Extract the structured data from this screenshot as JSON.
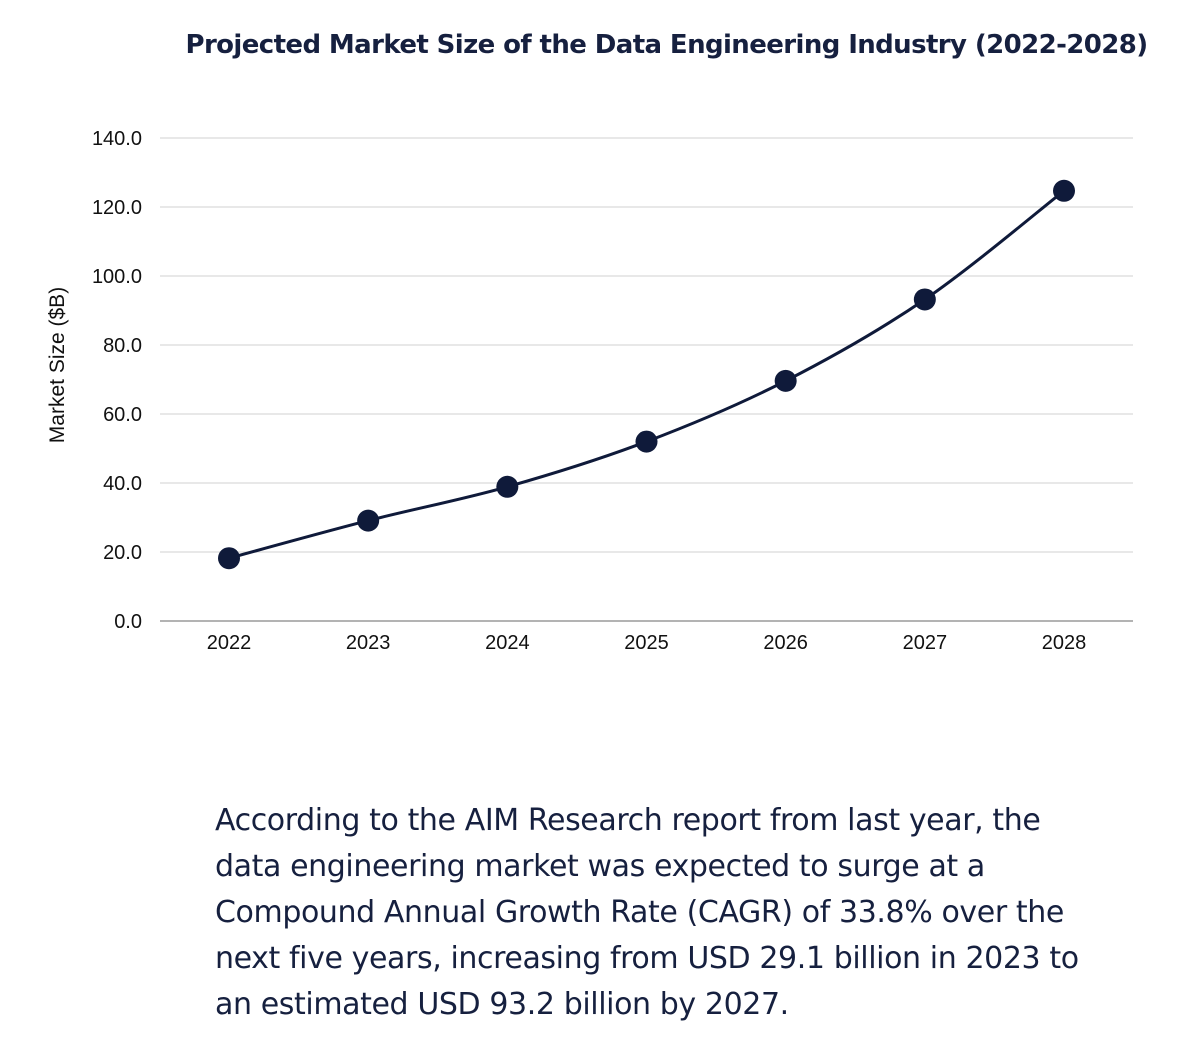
{
  "chart_data": {
    "type": "line",
    "title": "Projected Market Size of the Data Engineering Industry (2022-2028)",
    "xlabel": "",
    "ylabel": "Market Size ($B)",
    "categories": [
      "2022",
      "2023",
      "2024",
      "2025",
      "2026",
      "2027",
      "2028"
    ],
    "values": [
      18.2,
      29.1,
      38.9,
      52.0,
      69.6,
      93.2,
      124.7
    ],
    "ylim": [
      0,
      140
    ],
    "yticks": [
      0,
      20,
      40,
      60,
      80,
      100,
      120,
      140
    ],
    "ytick_labels": [
      "0.0",
      "20.0",
      "40.0",
      "60.0",
      "80.0",
      "100.0",
      "120.0",
      "140.0"
    ],
    "grid": true,
    "legend": "none",
    "line_color": "#0f1a3a",
    "marker_color": "#0f1a3a",
    "grid_color": "#d9d9d9"
  },
  "description": {
    "lines": [
      "According to the AIM Research report from last year, the",
      "data engineering market was expected to surge at a",
      "Compound Annual Growth Rate (CAGR) of 33.8% over the",
      "next five years, increasing from USD 29.1 billion in 2023 to",
      "an estimated USD 93.2 billion by 2027."
    ]
  }
}
